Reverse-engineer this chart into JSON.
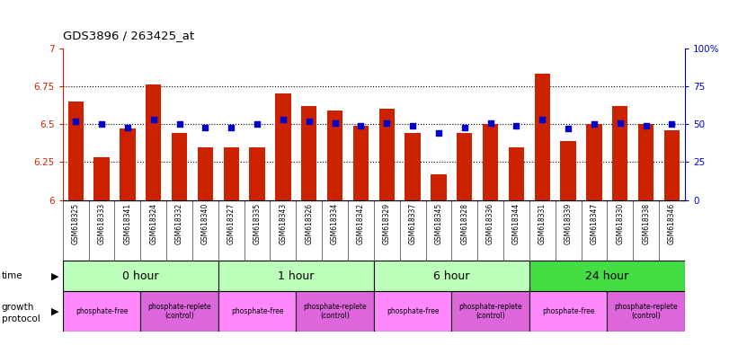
{
  "title": "GDS3896 / 263425_at",
  "samples": [
    "GSM618325",
    "GSM618333",
    "GSM618341",
    "GSM618324",
    "GSM618332",
    "GSM618340",
    "GSM618327",
    "GSM618335",
    "GSM618343",
    "GSM618326",
    "GSM618334",
    "GSM618342",
    "GSM618329",
    "GSM618337",
    "GSM618345",
    "GSM618328",
    "GSM618336",
    "GSM618344",
    "GSM618331",
    "GSM618339",
    "GSM618347",
    "GSM618330",
    "GSM618338",
    "GSM618346"
  ],
  "bar_values": [
    6.65,
    6.28,
    6.47,
    6.76,
    6.44,
    6.35,
    6.35,
    6.35,
    6.7,
    6.62,
    6.59,
    6.49,
    6.6,
    6.44,
    6.17,
    6.44,
    6.5,
    6.35,
    6.83,
    6.39,
    6.5,
    6.62,
    6.5,
    6.46
  ],
  "percentile_values": [
    52,
    50,
    48,
    53,
    50,
    48,
    48,
    50,
    53,
    52,
    51,
    49,
    51,
    49,
    44,
    48,
    51,
    49,
    53,
    47,
    50,
    51,
    49,
    50
  ],
  "time_groups": [
    {
      "label": "0 hour",
      "start": 0,
      "end": 6,
      "color": "#bbffbb"
    },
    {
      "label": "1 hour",
      "start": 6,
      "end": 12,
      "color": "#bbffbb"
    },
    {
      "label": "6 hour",
      "start": 12,
      "end": 18,
      "color": "#bbffbb"
    },
    {
      "label": "24 hour",
      "start": 18,
      "end": 24,
      "color": "#44dd44"
    }
  ],
  "protocol_groups": [
    {
      "label": "phosphate-free",
      "start": 0,
      "end": 3,
      "color": "#ff88ff"
    },
    {
      "label": "phosphate-replete\n(control)",
      "start": 3,
      "end": 6,
      "color": "#dd66dd"
    },
    {
      "label": "phosphate-free",
      "start": 6,
      "end": 9,
      "color": "#ff88ff"
    },
    {
      "label": "phosphate-replete\n(control)",
      "start": 9,
      "end": 12,
      "color": "#dd66dd"
    },
    {
      "label": "phosphate-free",
      "start": 12,
      "end": 15,
      "color": "#ff88ff"
    },
    {
      "label": "phosphate-replete\n(control)",
      "start": 15,
      "end": 18,
      "color": "#dd66dd"
    },
    {
      "label": "phosphate-free",
      "start": 18,
      "end": 21,
      "color": "#ff88ff"
    },
    {
      "label": "phosphate-replete\n(control)",
      "start": 21,
      "end": 24,
      "color": "#dd66dd"
    }
  ],
  "ylim_left": [
    6.0,
    7.0
  ],
  "ylim_right": [
    0,
    100
  ],
  "yticks_left": [
    6.0,
    6.25,
    6.5,
    6.75,
    7.0
  ],
  "yticks_right": [
    0,
    25,
    50,
    75,
    100
  ],
  "bar_color": "#cc2200",
  "dot_color": "#0000cc",
  "xlabel_bg": "#d8d8d8",
  "grid_color": "#000000"
}
